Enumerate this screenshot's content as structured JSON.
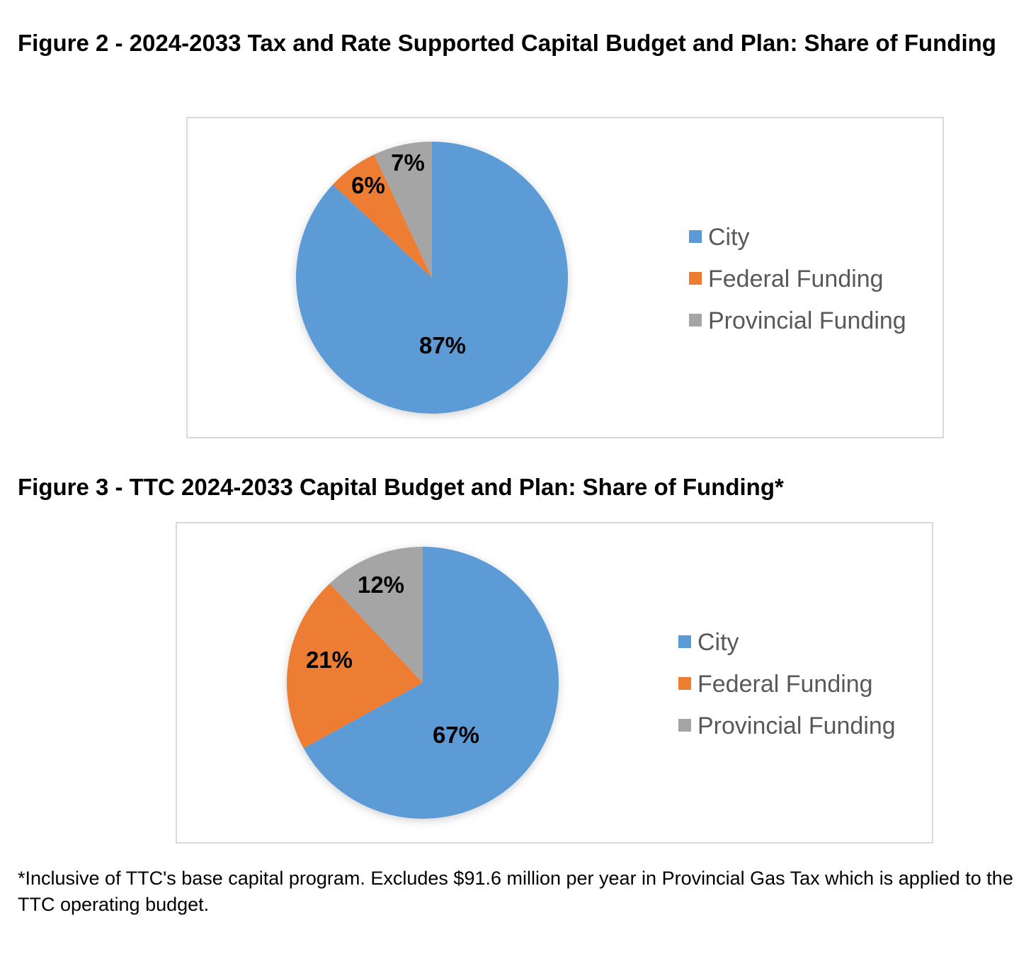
{
  "colors": {
    "city": "#5b9bd5",
    "federal": "#ed7d31",
    "provincial": "#a5a5a5",
    "legend_text": "#595959"
  },
  "chart_data": [
    {
      "type": "pie",
      "title": "Figure 2 - 2024-2033 Tax and Rate Supported Capital Budget and Plan: Share of Funding",
      "series": [
        {
          "name": "City",
          "value": 87,
          "label": "87%",
          "color": "#5b9bd5"
        },
        {
          "name": "Federal Funding",
          "value": 6,
          "label": "6%",
          "color": "#ed7d31"
        },
        {
          "name": "Provincial Funding",
          "value": 7,
          "label": "7%",
          "color": "#a5a5a5"
        }
      ],
      "legend": [
        "City",
        "Federal Funding",
        "Provincial Funding"
      ],
      "legend_position": "right"
    },
    {
      "type": "pie",
      "title": "Figure 3 - TTC 2024-2033 Capital Budget and Plan: Share of Funding*",
      "series": [
        {
          "name": "City",
          "value": 67,
          "label": "67%",
          "color": "#5b9bd5"
        },
        {
          "name": "Federal Funding",
          "value": 21,
          "label": "21%",
          "color": "#ed7d31"
        },
        {
          "name": "Provincial Funding",
          "value": 12,
          "label": "12%",
          "color": "#a5a5a5"
        }
      ],
      "legend": [
        "City",
        "Federal Funding",
        "Provincial Funding"
      ],
      "legend_position": "right"
    }
  ],
  "footnote": "*Inclusive of TTC's base capital program. Excludes $91.6 million per year in Provincial Gas Tax which is applied to the TTC operating budget."
}
